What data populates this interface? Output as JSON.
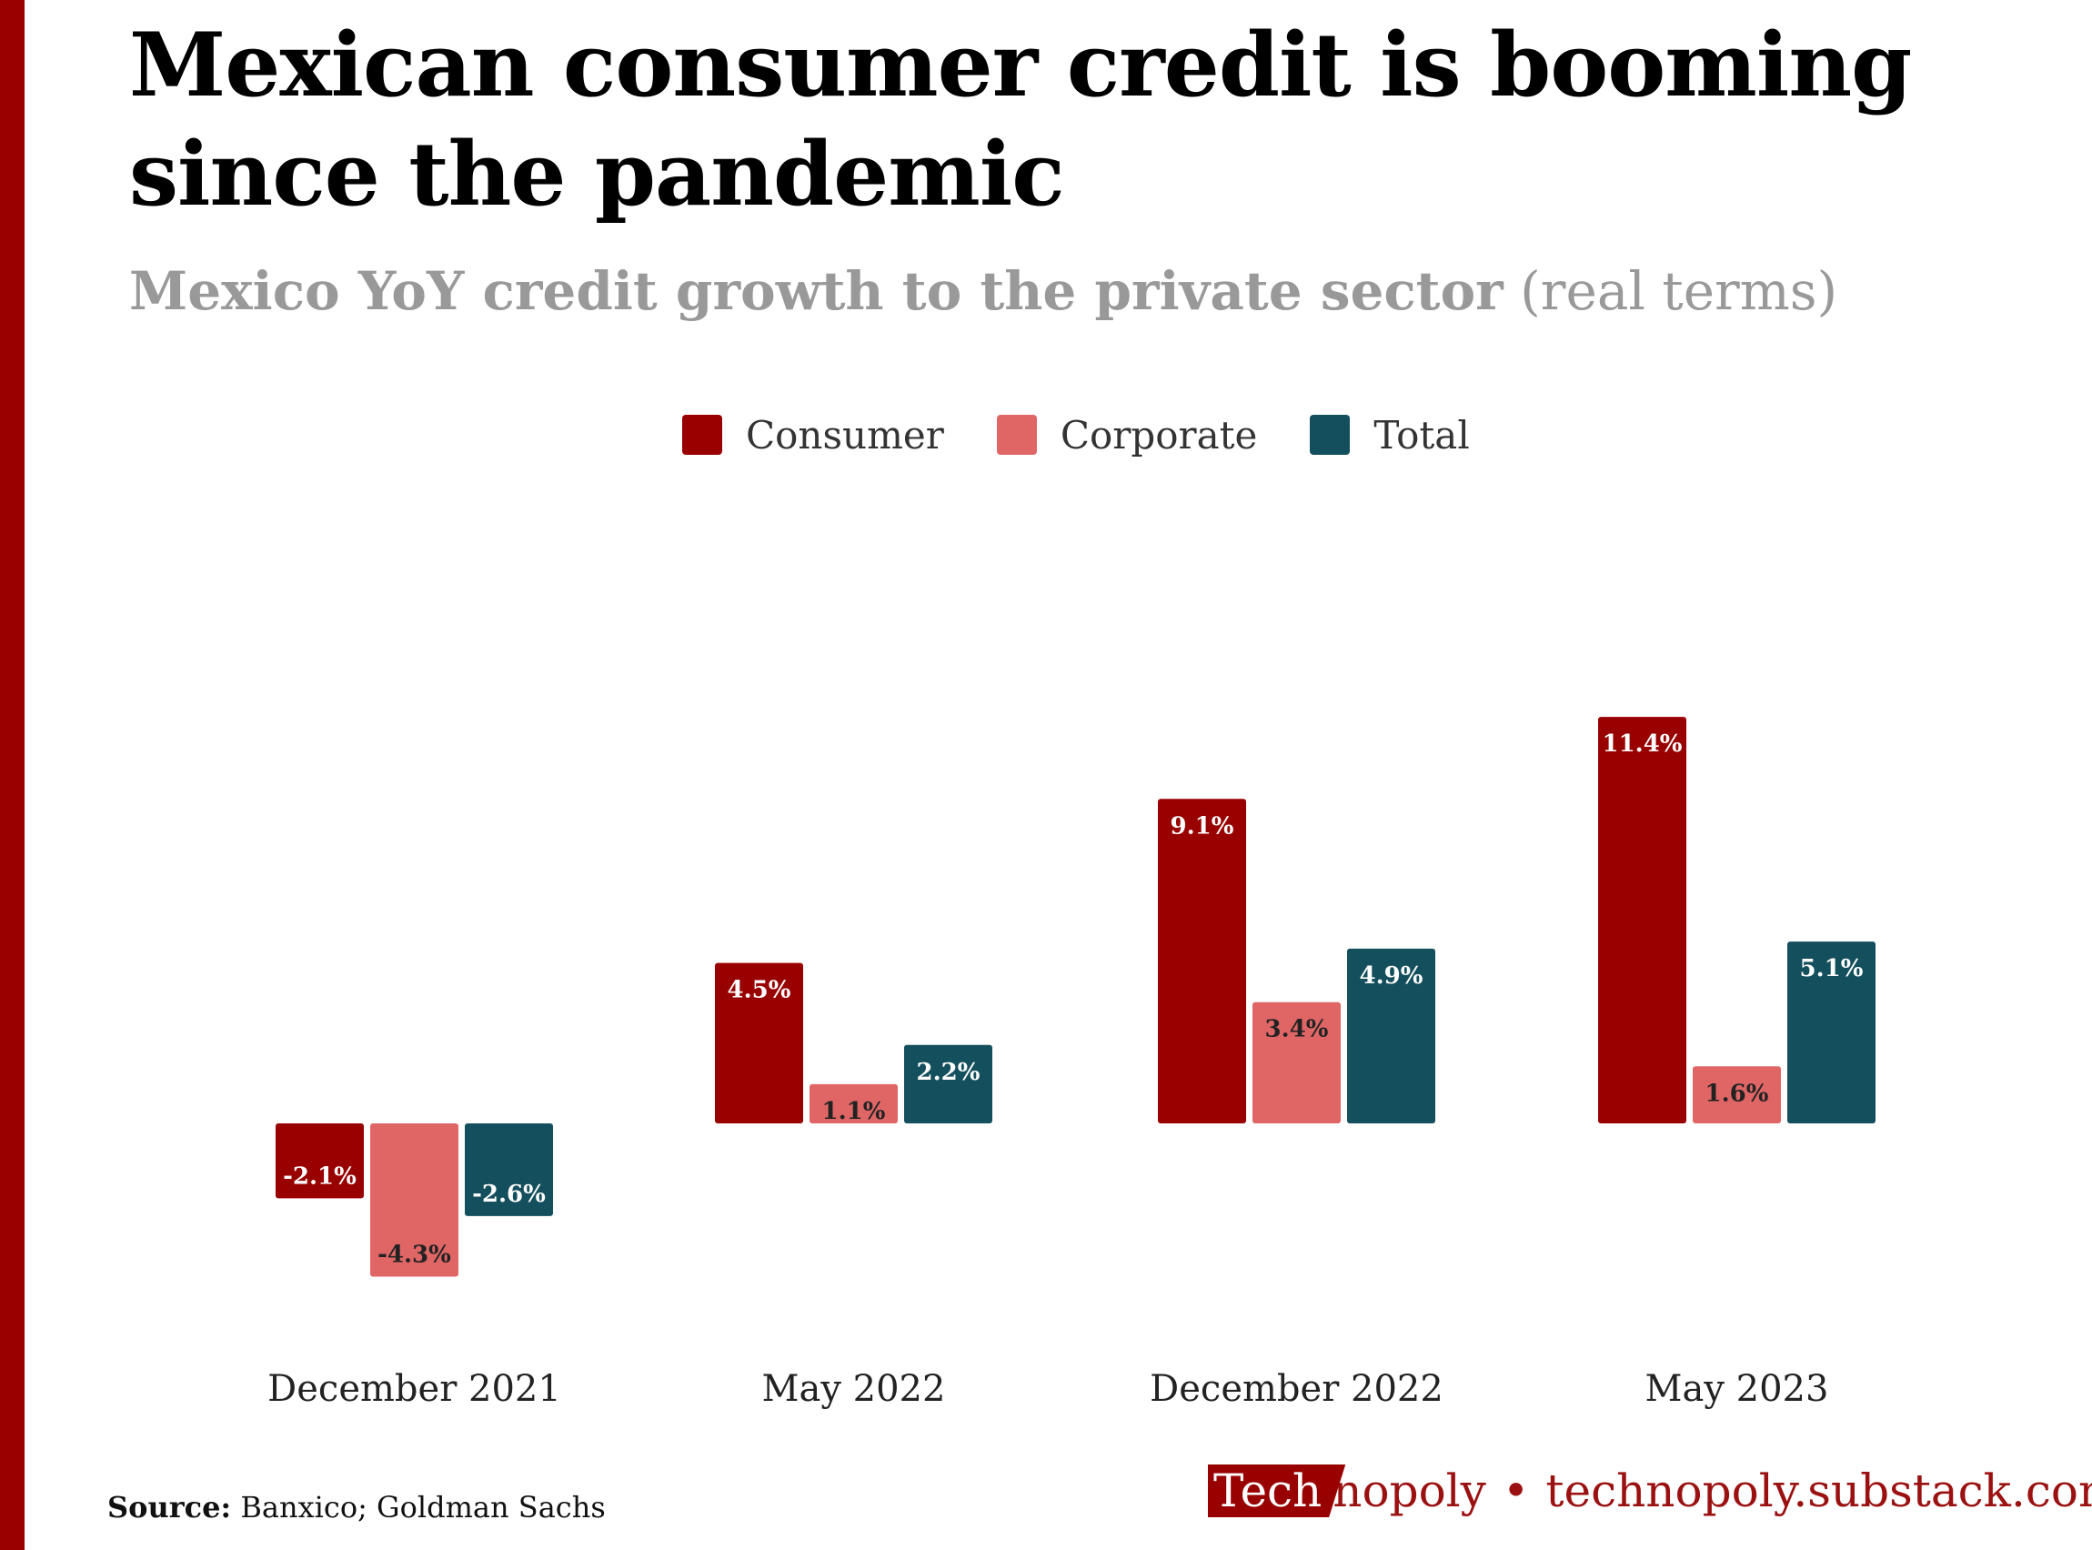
{
  "title": "Mexican consumer credit is booming since the pandemic",
  "subtitle": {
    "main": "Mexico YoY credit growth to the private sector",
    "note": "(real terms)"
  },
  "legend": [
    {
      "label": "Consumer",
      "color": "#990000"
    },
    {
      "label": "Corporate",
      "color": "#e06666"
    },
    {
      "label": "Total",
      "color": "#134f5c"
    }
  ],
  "chart_data": {
    "type": "bar",
    "title": "Mexico YoY credit growth to the private sector (real terms)",
    "categories": [
      "December 2021",
      "May 2022",
      "December 2022",
      "May 2023"
    ],
    "series": [
      {
        "name": "Consumer",
        "color": "#990000",
        "values": [
          -2.1,
          4.5,
          9.1,
          11.4
        ],
        "labels": [
          "-2.1%",
          "4.5%",
          "9.1%",
          "11.4%"
        ]
      },
      {
        "name": "Corporate",
        "color": "#e06666",
        "values": [
          -4.3,
          1.1,
          3.4,
          1.6
        ],
        "labels": [
          "-4.3%",
          "1.1%",
          "3.4%",
          "1.6%"
        ]
      },
      {
        "name": "Total",
        "color": "#134f5c",
        "values": [
          -2.6,
          2.2,
          4.9,
          5.1
        ],
        "labels": [
          "-2.6%",
          "2.2%",
          "4.9%",
          "5.1%"
        ]
      }
    ],
    "xlabel": "",
    "ylabel": "",
    "ylim": [
      -4.3,
      11.4
    ],
    "grid": false,
    "legend_position": "top"
  },
  "source": {
    "label": "Source:",
    "text": " Banxico; Goldman Sachs"
  },
  "brand": {
    "tech": "Tech",
    "rest": "nopoly",
    "separator": "•",
    "url": "technopoly.substack.com"
  }
}
